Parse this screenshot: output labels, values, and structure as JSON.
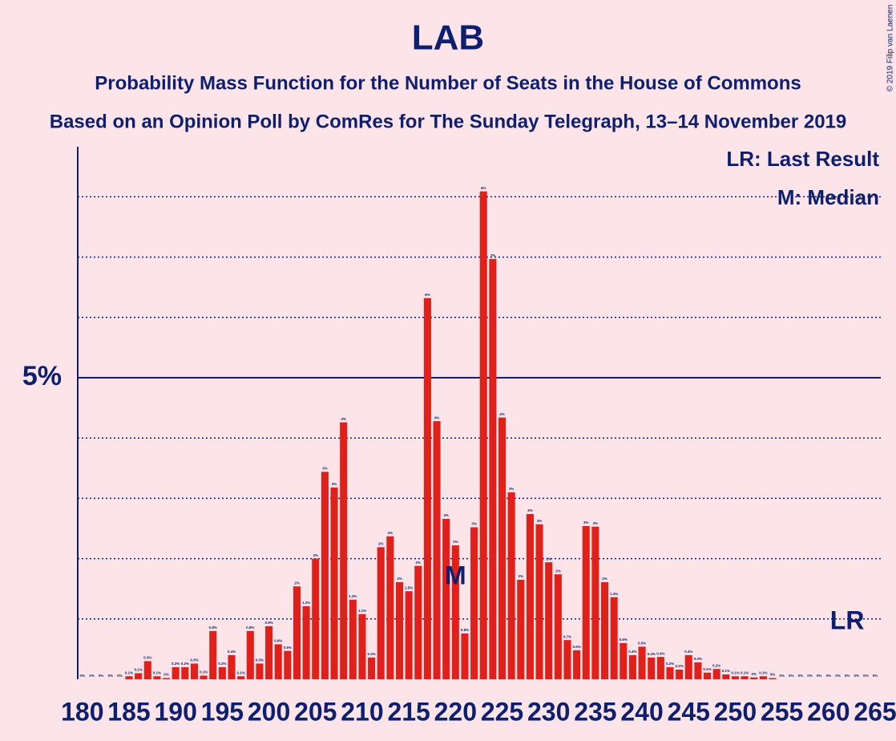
{
  "chart_data": {
    "type": "bar",
    "title": "LAB",
    "subtitle": "Probability Mass Function for the Number of Seats in the House of Commons",
    "subtitle2": "Based on an Opinion Poll by ComRes for The Sunday Telegraph, 13–14 November 2019",
    "copyright": "© 2019 Filip van Laenen",
    "legend": [
      "LR: Last Result",
      "M: Median"
    ],
    "median": {
      "x": 220,
      "label": "M"
    },
    "last_result": {
      "x": 262,
      "label": "LR"
    },
    "color": "#e0201b",
    "x": [
      180,
      181,
      182,
      183,
      184,
      185,
      186,
      187,
      188,
      189,
      190,
      191,
      192,
      193,
      194,
      195,
      196,
      197,
      198,
      199,
      200,
      201,
      202,
      203,
      204,
      205,
      206,
      207,
      208,
      209,
      210,
      211,
      212,
      213,
      214,
      215,
      216,
      217,
      218,
      219,
      220,
      221,
      222,
      223,
      224,
      225,
      226,
      227,
      228,
      229,
      230,
      231,
      232,
      233,
      234,
      235,
      236,
      237,
      238,
      239,
      240,
      241,
      242,
      243,
      244,
      245,
      246,
      247,
      248,
      249,
      250,
      251,
      252,
      253,
      254,
      255,
      256,
      257,
      258,
      259,
      260,
      261,
      262,
      263,
      264,
      265
    ],
    "values": [
      0,
      0,
      0,
      0,
      0,
      0.05,
      0.1,
      0.3,
      0.05,
      0.02,
      0.2,
      0.2,
      0.26,
      0.06,
      0.8,
      0.2,
      0.4,
      0.05,
      0.8,
      0.26,
      0.88,
      0.58,
      0.47,
      1.54,
      1.21,
      2.0,
      3.44,
      3.18,
      4.26,
      1.32,
      1.08,
      0.36,
      2.19,
      2.37,
      1.61,
      1.46,
      1.88,
      6.32,
      4.28,
      2.66,
      2.22,
      0.76,
      2.52,
      8.09,
      6.97,
      4.34,
      3.1,
      1.65,
      2.74,
      2.57,
      1.94,
      1.74,
      0.65,
      0.48,
      2.54,
      2.53,
      1.61,
      1.36,
      0.6,
      0.4,
      0.54,
      0.36,
      0.37,
      0.2,
      0.16,
      0.4,
      0.28,
      0.11,
      0.17,
      0.08,
      0.05,
      0.05,
      0.03,
      0.05,
      0.02,
      0,
      0,
      0,
      0,
      0,
      0,
      0,
      0,
      0,
      0,
      0
    ],
    "value_labels": [
      "0%",
      "0%",
      "0%",
      "0%",
      "0%",
      "0.1%",
      "0.1%",
      "0.3%",
      "0.1%",
      "0%",
      "0.2%",
      "0.2%",
      "0.3%",
      "0.1%",
      "0.8%",
      "0.2%",
      "0.4%",
      "0.1%",
      "0.8%",
      "0.3%",
      "0.9%",
      "0.6%",
      "0.5%",
      "2%",
      "1.2%",
      "2%",
      "3%",
      "3%",
      "4%",
      "1.3%",
      "1.1%",
      "0.4%",
      "2%",
      "2%",
      "2%",
      "1.5%",
      "2%",
      "6%",
      "4%",
      "3%",
      "2%",
      "0.8%",
      "3%",
      "8%",
      "7%",
      "4%",
      "3%",
      "2%",
      "3%",
      "3%",
      "2%",
      "2%",
      "0.7%",
      "0.5%",
      "3%",
      "3%",
      "2%",
      "1.4%",
      "0.6%",
      "0.4%",
      "0.5%",
      "0.4%",
      "0.4%",
      "0.2%",
      "0.2%",
      "0.4%",
      "0.3%",
      "0.1%",
      "0.2%",
      "0.1%",
      "0.1%",
      "0.1%",
      "0%",
      "0.1%",
      "0%",
      "0%",
      "0%",
      "0%",
      "0%",
      "0%",
      "0%",
      "0%",
      "0%",
      "0%",
      "0%",
      "0%"
    ],
    "xlim": [
      179.5,
      265.6
    ],
    "xticks": [
      180,
      185,
      190,
      195,
      200,
      205,
      210,
      215,
      220,
      225,
      230,
      235,
      240,
      245,
      250,
      255,
      260,
      265
    ],
    "ylim": [
      0,
      8.83
    ],
    "yticks": [
      {
        "value": 5,
        "label": "5%"
      }
    ],
    "grid_lines": [
      1,
      2,
      3,
      4,
      6,
      7,
      8
    ]
  }
}
